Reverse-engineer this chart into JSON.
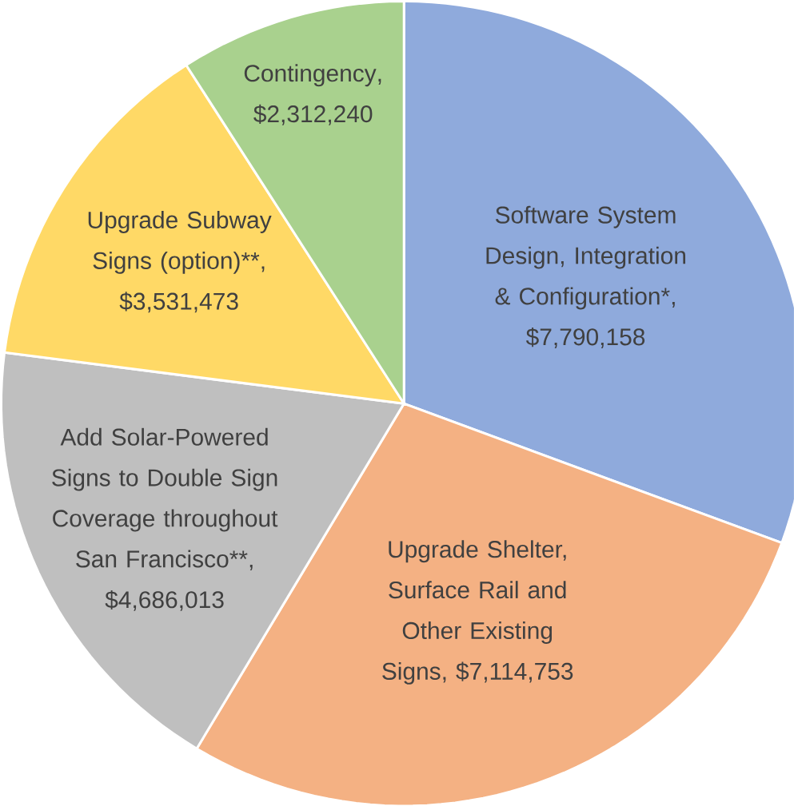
{
  "chart_data": {
    "type": "pie",
    "categories": [
      "Software System Design, Integration & Configuration*",
      "Upgrade Shelter, Surface Rail and Other Existing Signs",
      "Add Solar-Powered Signs to Double Sign Coverage throughout San Francisco**",
      "Upgrade Subway Signs (option)**",
      "Contingency"
    ],
    "values": [
      7790158,
      7114753,
      4686013,
      3531473,
      2312240
    ],
    "value_labels": [
      ", $7,790,158",
      ", $7,114,753",
      ", $4,686,013",
      ", $3,531,473",
      ", $2,312,240"
    ],
    "colors": [
      "#8faadc",
      "#f4b183",
      "#bfbfbf",
      "#ffd966",
      "#a9d18e"
    ]
  }
}
